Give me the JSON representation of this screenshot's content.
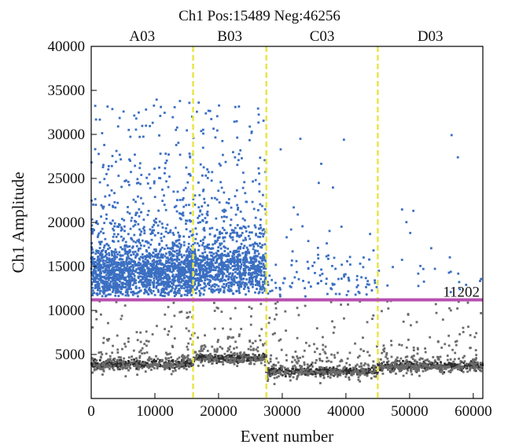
{
  "chart_data": {
    "type": "scatter",
    "title": "Ch1 Pos:15489 Neg:46256",
    "xlabel": "Event number",
    "ylabel": "Ch1 Amplitude",
    "xlim": [
      0,
      61500
    ],
    "ylim": [
      0,
      40000
    ],
    "xticks": [
      0,
      10000,
      20000,
      30000,
      40000,
      50000,
      60000
    ],
    "yticks": [
      5000,
      10000,
      15000,
      20000,
      25000,
      30000,
      35000,
      40000
    ],
    "grid": false,
    "colors": {
      "positive": "#3b6fc2",
      "negative": "#6b6b6b",
      "threshold": "#b84fb0",
      "divider": "#e6e64a"
    },
    "threshold": {
      "value": 11202,
      "label": "11202"
    },
    "wells": [
      {
        "name": "A03",
        "x_start": 0,
        "x_end": 16000,
        "pos_band": 14000,
        "neg_band": 3900
      },
      {
        "name": "B03",
        "x_start": 16000,
        "x_end": 27500,
        "pos_band": 14500,
        "neg_band": 4600
      },
      {
        "name": "C03",
        "x_start": 27500,
        "x_end": 45000,
        "pos_band": 13000,
        "neg_band": 3100
      },
      {
        "name": "D03",
        "x_start": 45000,
        "x_end": 61500,
        "pos_band": 14000,
        "neg_band": 3700
      }
    ],
    "dividers": [
      16000,
      27500,
      45000
    ]
  }
}
